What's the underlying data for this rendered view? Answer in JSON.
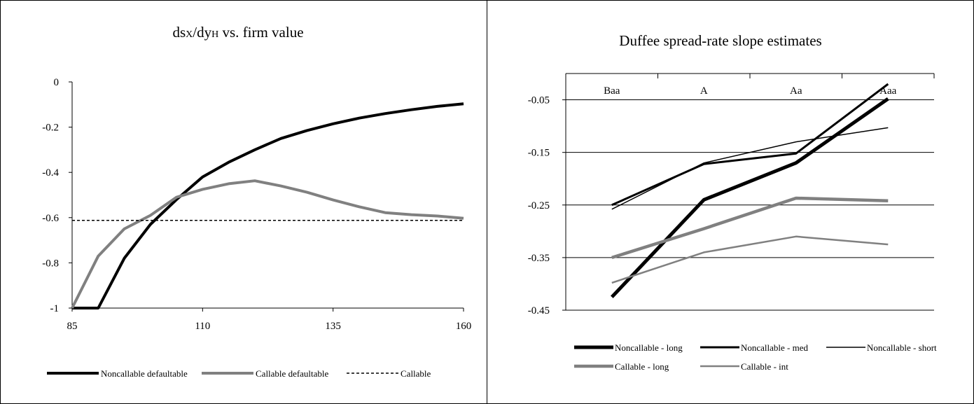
{
  "chart_data": [
    {
      "type": "line",
      "title": "ds",
      "title_parts": {
        "a": "ds",
        "b": "X",
        "c": "/dy",
        "d": "H",
        "e": " vs. firm value"
      },
      "xlabel": "",
      "ylabel": "",
      "xlim": [
        85,
        160
      ],
      "ylim": [
        -1,
        0
      ],
      "xticks": [
        "85",
        "110",
        "135",
        "160"
      ],
      "yticks": [
        "0",
        "-0.2",
        "-0.4",
        "-0.6",
        "-0.8",
        "-1"
      ],
      "grid": false,
      "legend_position": "bottom",
      "series": [
        {
          "name": "Noncallable defaultable",
          "color": "#000000",
          "width": 4,
          "dash": "",
          "x": [
            85,
            90,
            95,
            100,
            105,
            110,
            115,
            120,
            125,
            130,
            135,
            140,
            145,
            150,
            155,
            160
          ],
          "y": [
            -1.0,
            -1.0,
            -0.78,
            -0.63,
            -0.52,
            -0.42,
            -0.355,
            -0.3,
            -0.25,
            -0.215,
            -0.185,
            -0.16,
            -0.14,
            -0.123,
            -0.108,
            -0.097
          ]
        },
        {
          "name": "Callable defaultable",
          "color": "#808080",
          "width": 4,
          "dash": "",
          "x": [
            85,
            90,
            95,
            100,
            105,
            110,
            115,
            120,
            125,
            130,
            135,
            140,
            145,
            150,
            155,
            160
          ],
          "y": [
            -1.0,
            -0.77,
            -0.65,
            -0.59,
            -0.51,
            -0.475,
            -0.45,
            -0.437,
            -0.46,
            -0.488,
            -0.522,
            -0.552,
            -0.578,
            -0.587,
            -0.593,
            -0.603
          ]
        },
        {
          "name": "Callable",
          "color": "#000000",
          "width": 1.5,
          "dash": "4,3",
          "x": [
            85,
            160
          ],
          "y": [
            -0.612,
            -0.612
          ]
        }
      ]
    },
    {
      "type": "line",
      "title": "Duffee spread-rate slope estimates",
      "xlabel": "",
      "ylabel": "",
      "categories": [
        "Baa",
        "A",
        "Aa",
        "Aaa"
      ],
      "ylim": [
        -0.45,
        0.0
      ],
      "yticks": [
        "-0.05",
        "-0.15",
        "-0.25",
        "-0.35",
        "-0.45"
      ],
      "grid": true,
      "legend_position": "bottom",
      "series": [
        {
          "name": "Noncallable - long",
          "color": "#000000",
          "width": 5,
          "values": [
            -0.425,
            -0.24,
            -0.17,
            -0.048
          ]
        },
        {
          "name": "Noncallable - med",
          "color": "#000000",
          "width": 3,
          "values": [
            -0.25,
            -0.172,
            -0.152,
            -0.02
          ]
        },
        {
          "name": "Noncallable - short",
          "color": "#000000",
          "width": 1.5,
          "values": [
            -0.258,
            -0.17,
            -0.13,
            -0.103
          ]
        },
        {
          "name": "Callable - long",
          "color": "#808080",
          "width": 4.5,
          "values": [
            -0.35,
            -0.295,
            -0.237,
            -0.242
          ]
        },
        {
          "name": "Callable - int",
          "color": "#808080",
          "width": 2.5,
          "values": [
            -0.398,
            -0.34,
            -0.31,
            -0.325
          ]
        }
      ]
    }
  ]
}
